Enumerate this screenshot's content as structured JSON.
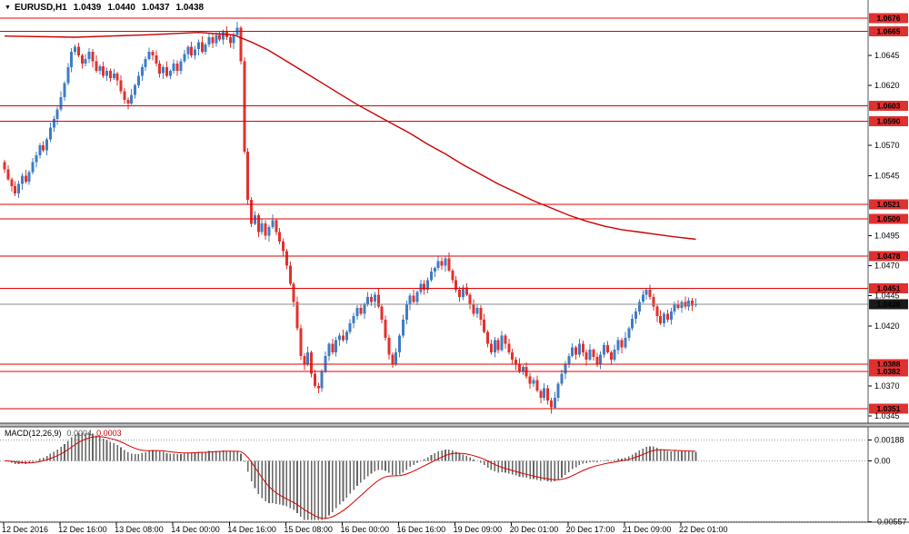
{
  "header": {
    "dropdown_icon": "▼",
    "symbol": "EURUSD,H1",
    "open": "1.0439",
    "high": "1.0440",
    "low": "1.0437",
    "close": "1.0438"
  },
  "colors": {
    "up_candle": "#3f7cc4",
    "down_candle": "#e2312d",
    "ma_line": "#cc0000",
    "hline": "#e00000",
    "hline_tag_bg": "#e03030",
    "current_tag_bg": "#1a1a1a",
    "current_line": "#8a8a8a",
    "macd_bar": "#666666",
    "macd_signal": "#d40000",
    "axis_text": "#000000"
  },
  "chart_data": {
    "type": "candlestick",
    "title": "EURUSD H1",
    "symbol": "EURUSD",
    "timeframe": "H1",
    "price_range_visible": [
      1.0339,
      1.0691
    ],
    "price_ticks": [
      1.0645,
      1.062,
      1.057,
      1.0545,
      1.0495,
      1.047,
      1.0445,
      1.042,
      1.037,
      1.0345
    ],
    "horizontal_lines": [
      1.0676,
      1.0665,
      1.0603,
      1.059,
      1.0521,
      1.0509,
      1.0478,
      1.0451,
      1.0388,
      1.0382,
      1.0351
    ],
    "current_price": 1.0438,
    "x_axis_labels": [
      {
        "text": "12 Dec 2016",
        "bar": 0
      },
      {
        "text": "12 Dec 16:00",
        "bar": 16
      },
      {
        "text": "13 Dec 08:00",
        "bar": 32
      },
      {
        "text": "14 Dec 00:00",
        "bar": 48
      },
      {
        "text": "14 Dec 16:00",
        "bar": 64
      },
      {
        "text": "15 Dec 08:00",
        "bar": 80
      },
      {
        "text": "16 Dec 00:00",
        "bar": 96
      },
      {
        "text": "16 Dec 16:00",
        "bar": 112
      },
      {
        "text": "19 Dec 09:00",
        "bar": 128
      },
      {
        "text": "20 Dec 01:00",
        "bar": 144
      },
      {
        "text": "20 Dec 17:00",
        "bar": 160
      },
      {
        "text": "21 Dec 09:00",
        "bar": 176
      },
      {
        "text": "22 Dec 01:00",
        "bar": 192
      }
    ],
    "first_open": 1.0556,
    "closes": [
      1.055,
      1.0542,
      1.0536,
      1.053,
      1.0538,
      1.0545,
      1.054,
      1.0548,
      1.0556,
      1.0562,
      1.057,
      1.0566,
      1.0575,
      1.0585,
      1.0592,
      1.06,
      1.061,
      1.0622,
      1.0635,
      1.0648,
      1.0652,
      1.0645,
      1.0638,
      1.0642,
      1.0648,
      1.064,
      1.0632,
      1.0636,
      1.0628,
      1.0632,
      1.0626,
      1.063,
      1.0624,
      1.0615,
      1.0608,
      1.0605,
      1.0612,
      1.062,
      1.0628,
      1.0635,
      1.0642,
      1.0648,
      1.0645,
      1.0638,
      1.063,
      1.0635,
      1.0628,
      1.0632,
      1.0638,
      1.0632,
      1.064,
      1.0646,
      1.0652,
      1.0645,
      1.065,
      1.0656,
      1.0648,
      1.0654,
      1.066,
      1.0655,
      1.0662,
      1.0658,
      1.0665,
      1.066,
      1.0655,
      1.0662,
      1.0668,
      1.064,
      1.0565,
      1.0525,
      1.0505,
      1.0512,
      1.0498,
      1.0505,
      1.0495,
      1.0502,
      1.0508,
      1.0498,
      1.049,
      1.0482,
      1.047,
      1.0455,
      1.044,
      1.0418,
      1.0395,
      1.0388,
      1.0398,
      1.038,
      1.037,
      1.0368,
      1.0382,
      1.0395,
      1.0405,
      1.0398,
      1.0408,
      1.0412,
      1.0408,
      1.0415,
      1.0422,
      1.0428,
      1.0435,
      1.043,
      1.0438,
      1.0444,
      1.044,
      1.0446,
      1.0436,
      1.0425,
      1.041,
      1.0396,
      1.0388,
      1.0398,
      1.0412,
      1.0425,
      1.0438,
      1.0445,
      1.044,
      1.0448,
      1.0455,
      1.045,
      1.0458,
      1.0465,
      1.0468,
      1.0474,
      1.047,
      1.0476,
      1.0466,
      1.0458,
      1.045,
      1.0444,
      1.0452,
      1.0446,
      1.0438,
      1.043,
      1.0435,
      1.0425,
      1.0415,
      1.0405,
      1.0398,
      1.0408,
      1.04,
      1.0412,
      1.0405,
      1.0398,
      1.0392,
      1.0388,
      1.0382,
      1.0386,
      1.0378,
      1.0372,
      1.0375,
      1.0366,
      1.036,
      1.0368,
      1.0358,
      1.0352,
      1.036,
      1.0372,
      1.038,
      1.0388,
      1.0395,
      1.0402,
      1.0396,
      1.0405,
      1.0398,
      1.0392,
      1.04,
      1.0394,
      1.0388,
      1.0396,
      1.0404,
      1.0398,
      1.0392,
      1.04,
      1.0408,
      1.0402,
      1.041,
      1.0418,
      1.0426,
      1.0432,
      1.044,
      1.0446,
      1.045,
      1.0444,
      1.0436,
      1.0428,
      1.0422,
      1.043,
      1.0425,
      1.0432,
      1.0438,
      1.0435,
      1.044,
      1.0436,
      1.0441,
      1.0437,
      1.0438
    ],
    "ma_points": [
      [
        0,
        1.0661
      ],
      [
        20,
        1.066
      ],
      [
        40,
        1.0662
      ],
      [
        55,
        1.0664
      ],
      [
        65,
        1.0662
      ],
      [
        70,
        1.0656
      ],
      [
        75,
        1.0649
      ],
      [
        80,
        1.064
      ],
      [
        85,
        1.0631
      ],
      [
        90,
        1.0622
      ],
      [
        95,
        1.0613
      ],
      [
        100,
        1.0604
      ],
      [
        105,
        1.0596
      ],
      [
        110,
        1.0588
      ],
      [
        115,
        1.058
      ],
      [
        120,
        1.0571
      ],
      [
        125,
        1.0563
      ],
      [
        130,
        1.0554
      ],
      [
        135,
        1.0546
      ],
      [
        140,
        1.0538
      ],
      [
        145,
        1.0531
      ],
      [
        150,
        1.0524
      ],
      [
        155,
        1.0518
      ],
      [
        160,
        1.0512
      ],
      [
        165,
        1.0507
      ],
      [
        170,
        1.0503
      ],
      [
        175,
        1.05
      ],
      [
        180,
        1.0498
      ],
      [
        185,
        1.0496
      ],
      [
        190,
        1.0494
      ],
      [
        196,
        1.0492
      ]
    ],
    "macd": {
      "label": "MACD(12,26,9)",
      "value_main": "0.0004",
      "value_signal": "0.0003",
      "params": [
        12,
        26,
        9
      ],
      "axis_labels": [
        "0.00188",
        "0.00",
        "-0.00557"
      ],
      "axis_values": [
        0.00188,
        0,
        -0.00557
      ]
    }
  }
}
